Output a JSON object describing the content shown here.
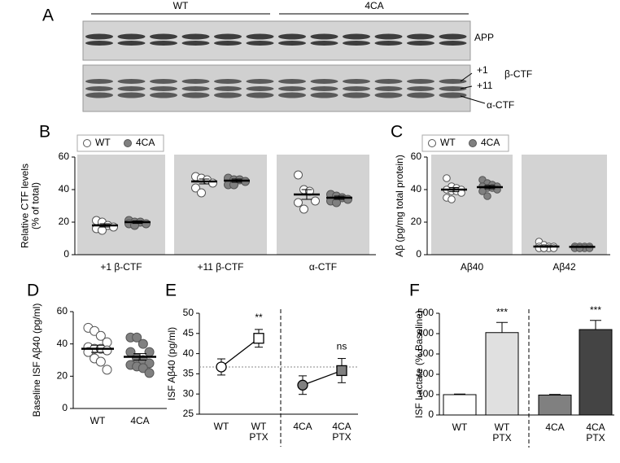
{
  "blot": {
    "panel": "A",
    "groups": [
      "WT",
      "4CA"
    ],
    "labels": [
      "APP",
      "+1",
      "+11",
      "β-CTF",
      "α-CTF"
    ]
  },
  "chart_data": [
    {
      "type": "dot",
      "panel": "B",
      "ylabel": [
        "Relative CTF levels",
        "(% of total)"
      ],
      "categories": [
        "+1 β-CTF",
        "+11 β-CTF",
        "α-CTF"
      ],
      "ylim": [
        0,
        60
      ],
      "yticks": [
        0,
        20,
        40,
        60
      ],
      "series": [
        {
          "name": "WT",
          "color": "#ffffff",
          "points": [
            [
              21,
              20,
              18,
              17,
              16,
              15
            ],
            [
              48,
              47,
              46,
              44,
              41,
              38
            ],
            [
              49,
              40,
              39,
              33,
              32,
              28
            ]
          ],
          "means": [
            18,
            45,
            37
          ],
          "errors": [
            1,
            1.5,
            3
          ]
        },
        {
          "name": "4CA",
          "color": "#808080",
          "points": [
            [
              21,
              20,
              20,
              19,
              19,
              18
            ],
            [
              47,
              46,
              46,
              45,
              43,
              43
            ],
            [
              37,
              36,
              35,
              34,
              33,
              32
            ]
          ],
          "means": [
            20,
            45.5,
            35
          ],
          "errors": [
            0.8,
            1,
            1
          ]
        }
      ]
    },
    {
      "type": "dot",
      "panel": "C",
      "ylabel": [
        "Aβ (pg/mg total protein)"
      ],
      "categories": [
        "Aβ40",
        "Aβ42"
      ],
      "ylim": [
        0,
        60
      ],
      "yticks": [
        0,
        20,
        40,
        60
      ],
      "series": [
        {
          "name": "WT",
          "color": "#ffffff",
          "points": [
            [
              47,
              42,
              41,
              40,
              40,
              39,
              39,
              38,
              35,
              34
            ],
            [
              8,
              6,
              5,
              5,
              5,
              4,
              4,
              4,
              4,
              4
            ]
          ],
          "means": [
            40,
            5
          ],
          "errors": [
            1.3,
            0.4
          ]
        },
        {
          "name": "4CA",
          "color": "#808080",
          "points": [
            [
              46,
              44,
              43,
              42,
              42,
              41,
              41,
              40,
              39,
              36
            ],
            [
              5,
              5,
              5,
              5,
              5,
              4,
              4,
              4,
              4,
              4
            ]
          ],
          "means": [
            41.5,
            4.8
          ],
          "errors": [
            1,
            0.2
          ]
        }
      ]
    },
    {
      "type": "dot",
      "panel": "D",
      "ylabel": [
        "Baseline ISF Aβ40 (pg/ml)"
      ],
      "categories": [
        "WT",
        "4CA"
      ],
      "colors": [
        "#ffffff",
        "#808080"
      ],
      "ylim": [
        0,
        60
      ],
      "yticks": [
        0,
        20,
        40,
        60
      ],
      "points": [
        [
          50,
          48,
          45,
          41,
          38,
          37,
          37,
          36,
          35,
          31,
          29,
          24
        ],
        [
          44,
          44,
          40,
          35,
          35,
          31,
          30,
          28,
          27,
          26,
          25,
          22
        ]
      ],
      "means": [
        37,
        32
      ],
      "errors": [
        2.2,
        2
      ]
    },
    {
      "type": "line",
      "panel": "E",
      "ylabel": [
        "ISF Aβ40 (pg/ml)"
      ],
      "categories": [
        [
          "WT"
        ],
        [
          "WT",
          "PTX"
        ],
        [
          "4CA"
        ],
        [
          "4CA",
          "PTX"
        ]
      ],
      "ylim": [
        25,
        50
      ],
      "yticks": [
        25,
        30,
        35,
        40,
        45,
        50
      ],
      "markers": [
        "circle",
        "square",
        "circle",
        "square"
      ],
      "reference_line": 36.7,
      "series": [
        {
          "color": "#ffffff",
          "values": [
            36.7,
            43.8,
            null,
            null
          ],
          "errors": [
            2,
            2.2,
            null,
            null
          ]
        },
        {
          "color": "#808080",
          "values": [
            null,
            null,
            32.2,
            35.8
          ],
          "errors": [
            null,
            null,
            2.3,
            3
          ]
        }
      ],
      "annotations": [
        null,
        "**",
        null,
        "ns"
      ]
    },
    {
      "type": "bar",
      "panel": "F",
      "ylabel": [
        "ISF Lactate  (% Baseline)"
      ],
      "categories": [
        [
          "WT"
        ],
        [
          "WT",
          "PTX"
        ],
        [
          "4CA"
        ],
        [
          "4CA",
          "PTX"
        ]
      ],
      "ylim": [
        0,
        500
      ],
      "yticks": [
        0,
        100,
        200,
        300,
        400,
        500
      ],
      "values": [
        100,
        405,
        98,
        420
      ],
      "errors": [
        3,
        50,
        3,
        45
      ],
      "colors": [
        "#ffffff",
        "#e0e0e0",
        "#808080",
        "#444444"
      ],
      "annotations": [
        null,
        "***",
        null,
        "***"
      ]
    }
  ]
}
